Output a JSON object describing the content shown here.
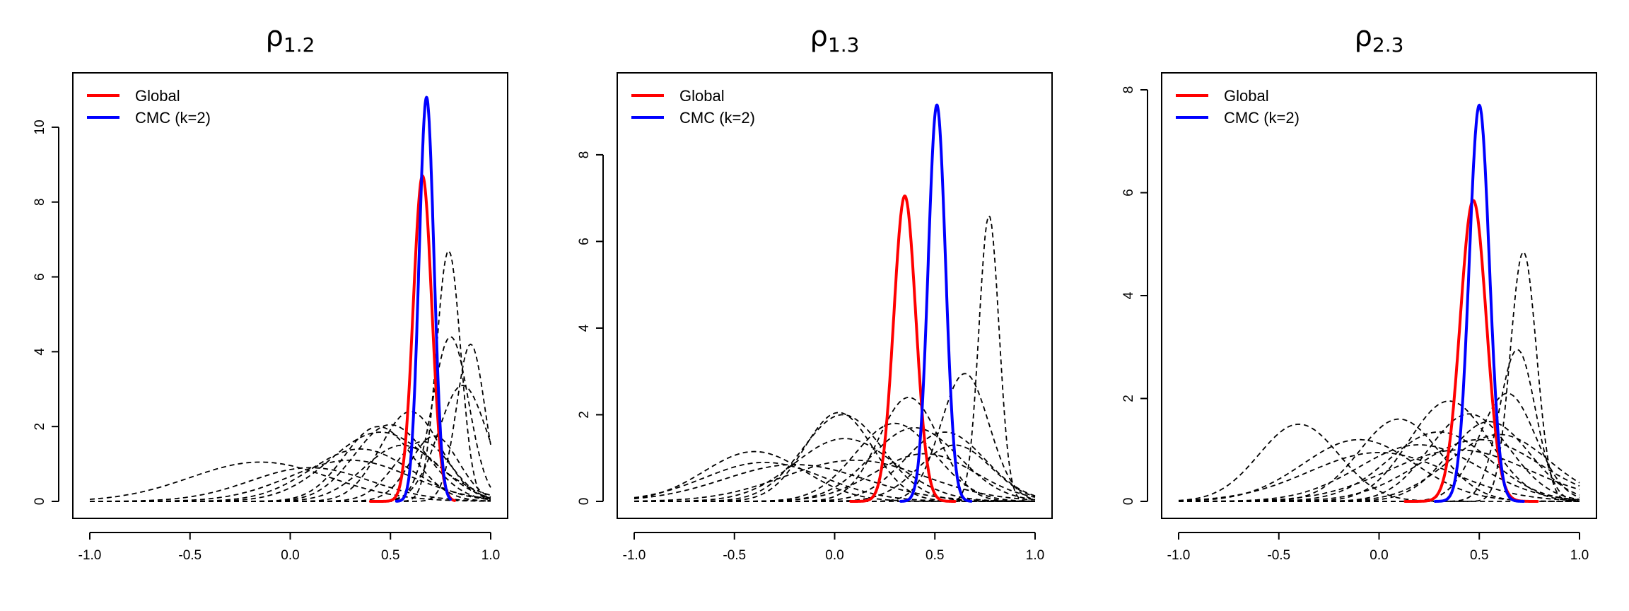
{
  "chart_data": [
    {
      "type": "line",
      "title": "ρ",
      "title_subscript": "1.2",
      "xlabel": "",
      "ylabel": "",
      "xlim": [
        -1,
        1
      ],
      "ylim": [
        0,
        11
      ],
      "x_ticks": [
        -1.0,
        -0.5,
        0.0,
        0.5,
        1.0
      ],
      "x_tick_labels": [
        "-1.0",
        "-0.5",
        "0.0",
        "0.5",
        "1.0"
      ],
      "y_ticks": [
        0,
        2,
        4,
        6,
        8,
        10
      ],
      "y_tick_labels": [
        "0",
        "2",
        "4",
        "6",
        "8",
        "10"
      ],
      "legend_position": "top-left",
      "series": [
        {
          "name": "Global",
          "color": "#ff0000",
          "style": "solid",
          "support": [
            0.4,
            0.82
          ],
          "mean": 0.66,
          "sd": 0.046,
          "peak": 8.7
        },
        {
          "name": "CMC (k=2)",
          "color": "#0000ff",
          "style": "solid",
          "support": [
            0.53,
            0.8
          ],
          "mean": 0.68,
          "sd": 0.037,
          "peak": 10.8
        }
      ],
      "subset_curves": [
        {
          "mean": 0.79,
          "sd": 0.06,
          "peak": 6.7
        },
        {
          "mean": 0.8,
          "sd": 0.09,
          "peak": 4.4
        },
        {
          "mean": 0.9,
          "sd": 0.07,
          "peak": 4.2
        },
        {
          "mean": 0.86,
          "sd": 0.12,
          "peak": 3.1
        },
        {
          "mean": 0.6,
          "sd": 0.15,
          "peak": 2.4
        },
        {
          "mean": 0.5,
          "sd": 0.18,
          "peak": 2.05
        },
        {
          "mean": 0.44,
          "sd": 0.17,
          "peak": 2.0
        },
        {
          "mean": 0.45,
          "sd": 0.25,
          "peak": 1.85
        },
        {
          "mean": 0.72,
          "sd": 0.12,
          "peak": 1.75
        },
        {
          "mean": 0.66,
          "sd": 0.14,
          "peak": 1.6
        },
        {
          "mean": 0.56,
          "sd": 0.19,
          "peak": 1.5
        },
        {
          "mean": 0.35,
          "sd": 0.25,
          "peak": 1.4
        },
        {
          "mean": 0.3,
          "sd": 0.3,
          "peak": 1.1
        },
        {
          "mean": -0.15,
          "sd": 0.35,
          "peak": 1.05
        },
        {
          "mean": 0.1,
          "sd": 0.3,
          "peak": 0.9
        }
      ]
    },
    {
      "type": "line",
      "title": "ρ",
      "title_subscript": "1.3",
      "xlabel": "",
      "ylabel": "",
      "xlim": [
        -1,
        1
      ],
      "ylim": [
        0,
        9.5
      ],
      "x_ticks": [
        -1.0,
        -0.5,
        0.0,
        0.5,
        1.0
      ],
      "x_tick_labels": [
        "-1.0",
        "-0.5",
        "0.0",
        "0.5",
        "1.0"
      ],
      "y_ticks": [
        0,
        2,
        4,
        6,
        8
      ],
      "y_tick_labels": [
        "0",
        "2",
        "4",
        "6",
        "8"
      ],
      "legend_position": "top-left",
      "series": [
        {
          "name": "Global",
          "color": "#ff0000",
          "style": "solid",
          "support": [
            0.08,
            0.6
          ],
          "mean": 0.35,
          "sd": 0.055,
          "peak": 7.05
        },
        {
          "name": "CMC (k=2)",
          "color": "#0000ff",
          "style": "solid",
          "support": [
            0.33,
            0.68
          ],
          "mean": 0.51,
          "sd": 0.043,
          "peak": 9.15
        }
      ],
      "subset_curves": [
        {
          "mean": 0.77,
          "sd": 0.05,
          "peak": 6.6
        },
        {
          "mean": 0.65,
          "sd": 0.12,
          "peak": 2.95
        },
        {
          "mean": 0.37,
          "sd": 0.15,
          "peak": 2.4
        },
        {
          "mean": 0.02,
          "sd": 0.17,
          "peak": 2.05
        },
        {
          "mean": 0.04,
          "sd": 0.2,
          "peak": 2.0
        },
        {
          "mean": 0.3,
          "sd": 0.2,
          "peak": 1.8
        },
        {
          "mean": 0.4,
          "sd": 0.22,
          "peak": 1.7
        },
        {
          "mean": 0.55,
          "sd": 0.2,
          "peak": 1.6
        },
        {
          "mean": 0.05,
          "sd": 0.25,
          "peak": 1.45
        },
        {
          "mean": -0.4,
          "sd": 0.25,
          "peak": 1.15
        },
        {
          "mean": 0.6,
          "sd": 0.18,
          "peak": 1.3
        },
        {
          "mean": 0.1,
          "sd": 0.35,
          "peak": 0.95
        },
        {
          "mean": -0.2,
          "sd": 0.35,
          "peak": 0.85
        },
        {
          "mean": 0.45,
          "sd": 0.25,
          "peak": 1.1
        },
        {
          "mean": -0.35,
          "sd": 0.3,
          "peak": 0.9
        }
      ]
    },
    {
      "type": "line",
      "title": "ρ",
      "title_subscript": "2.3",
      "xlabel": "",
      "ylabel": "",
      "xlim": [
        -1,
        1
      ],
      "ylim": [
        0,
        8
      ],
      "x_ticks": [
        -1.0,
        -0.5,
        0.0,
        0.5,
        1.0
      ],
      "x_tick_labels": [
        "-1.0",
        "-0.5",
        "0.0",
        "0.5",
        "1.0"
      ],
      "y_ticks": [
        0,
        2,
        4,
        6,
        8
      ],
      "y_tick_labels": [
        "0",
        "2",
        "4",
        "6",
        "8"
      ],
      "legend_position": "top-left",
      "series": [
        {
          "name": "Global",
          "color": "#ff0000",
          "style": "solid",
          "support": [
            0.13,
            0.79
          ],
          "mean": 0.47,
          "sd": 0.065,
          "peak": 5.85
        },
        {
          "name": "CMC (k=2)",
          "color": "#0000ff",
          "style": "solid",
          "support": [
            0.28,
            0.72
          ],
          "mean": 0.5,
          "sd": 0.05,
          "peak": 7.7
        }
      ],
      "subset_curves": [
        {
          "mean": 0.72,
          "sd": 0.065,
          "peak": 4.85
        },
        {
          "mean": 0.69,
          "sd": 0.09,
          "peak": 2.95
        },
        {
          "mean": 0.64,
          "sd": 0.14,
          "peak": 2.1
        },
        {
          "mean": 0.35,
          "sd": 0.2,
          "peak": 1.95
        },
        {
          "mean": -0.4,
          "sd": 0.2,
          "peak": 1.5
        },
        {
          "mean": 0.1,
          "sd": 0.2,
          "peak": 1.6
        },
        {
          "mean": 0.45,
          "sd": 0.2,
          "peak": 1.7
        },
        {
          "mean": 0.55,
          "sd": 0.2,
          "peak": 1.55
        },
        {
          "mean": -0.1,
          "sd": 0.28,
          "peak": 1.2
        },
        {
          "mean": 0.3,
          "sd": 0.25,
          "peak": 1.35
        },
        {
          "mean": 0.6,
          "sd": 0.25,
          "peak": 1.3
        },
        {
          "mean": 0.2,
          "sd": 0.3,
          "peak": 1.1
        },
        {
          "mean": 0.5,
          "sd": 0.3,
          "peak": 1.2
        },
        {
          "mean": 0.0,
          "sd": 0.35,
          "peak": 0.95
        },
        {
          "mean": 0.4,
          "sd": 0.35,
          "peak": 1.0
        }
      ]
    }
  ]
}
